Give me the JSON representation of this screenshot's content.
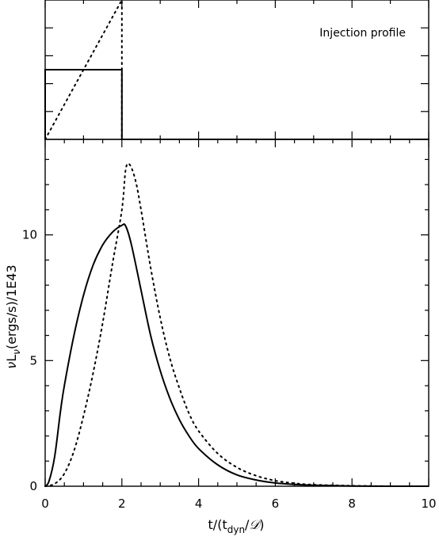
{
  "chart_data": [
    {
      "type": "line",
      "panel": "top",
      "annotation": "Injection profile",
      "xlim": [
        0,
        10
      ],
      "ylim": [
        0,
        1
      ],
      "grid": false,
      "series": [
        {
          "style": "solid",
          "x": [
            0,
            0,
            2,
            2,
            10
          ],
          "y": [
            0,
            0.5,
            0.5,
            0,
            0
          ]
        },
        {
          "style": "dotted",
          "x": [
            0,
            2,
            2,
            10
          ],
          "y": [
            0,
            1,
            0,
            0
          ]
        }
      ]
    },
    {
      "type": "line",
      "panel": "bottom",
      "xlabel": "t/(t_dyn/𝒟)",
      "ylabel": "νL_ν(ergs/s)/1E43",
      "xlim": [
        0,
        10
      ],
      "ylim": [
        0,
        13.8
      ],
      "xticks": [
        0,
        2,
        4,
        6,
        8,
        10
      ],
      "yticks": [
        0,
        5,
        10
      ],
      "grid": false,
      "series": [
        {
          "style": "solid",
          "x": [
            0,
            0.1,
            0.25,
            0.4,
            0.5,
            0.75,
            1.0,
            1.25,
            1.5,
            1.75,
            2.0,
            2.1,
            2.25,
            2.5,
            2.75,
            3.0,
            3.25,
            3.5,
            3.75,
            4.0,
            4.5,
            5.0,
            5.5,
            6.0,
            6.5,
            7.0,
            8.0,
            9.0,
            10.0
          ],
          "y": [
            0,
            0.2,
            1.2,
            3.0,
            4.0,
            6.0,
            7.6,
            8.8,
            9.6,
            10.1,
            10.38,
            10.35,
            9.6,
            7.8,
            6.0,
            4.6,
            3.5,
            2.65,
            2.0,
            1.5,
            0.85,
            0.45,
            0.25,
            0.13,
            0.07,
            0.04,
            0.01,
            0.0,
            0.0
          ]
        },
        {
          "style": "dotted",
          "x": [
            0,
            0.25,
            0.5,
            0.75,
            1.0,
            1.25,
            1.5,
            1.75,
            2.0,
            2.1,
            2.2,
            2.35,
            2.5,
            2.75,
            3.0,
            3.25,
            3.5,
            3.75,
            4.0,
            4.5,
            5.0,
            5.5,
            6.0,
            6.5,
            7.0,
            8.0,
            9.0,
            10.0
          ],
          "y": [
            0,
            0.1,
            0.5,
            1.4,
            2.8,
            4.5,
            6.5,
            8.8,
            11.0,
            12.6,
            12.8,
            12.2,
            11.0,
            8.7,
            6.7,
            5.1,
            3.9,
            2.9,
            2.2,
            1.3,
            0.75,
            0.42,
            0.22,
            0.12,
            0.06,
            0.02,
            0.0,
            0.0
          ]
        }
      ]
    }
  ]
}
